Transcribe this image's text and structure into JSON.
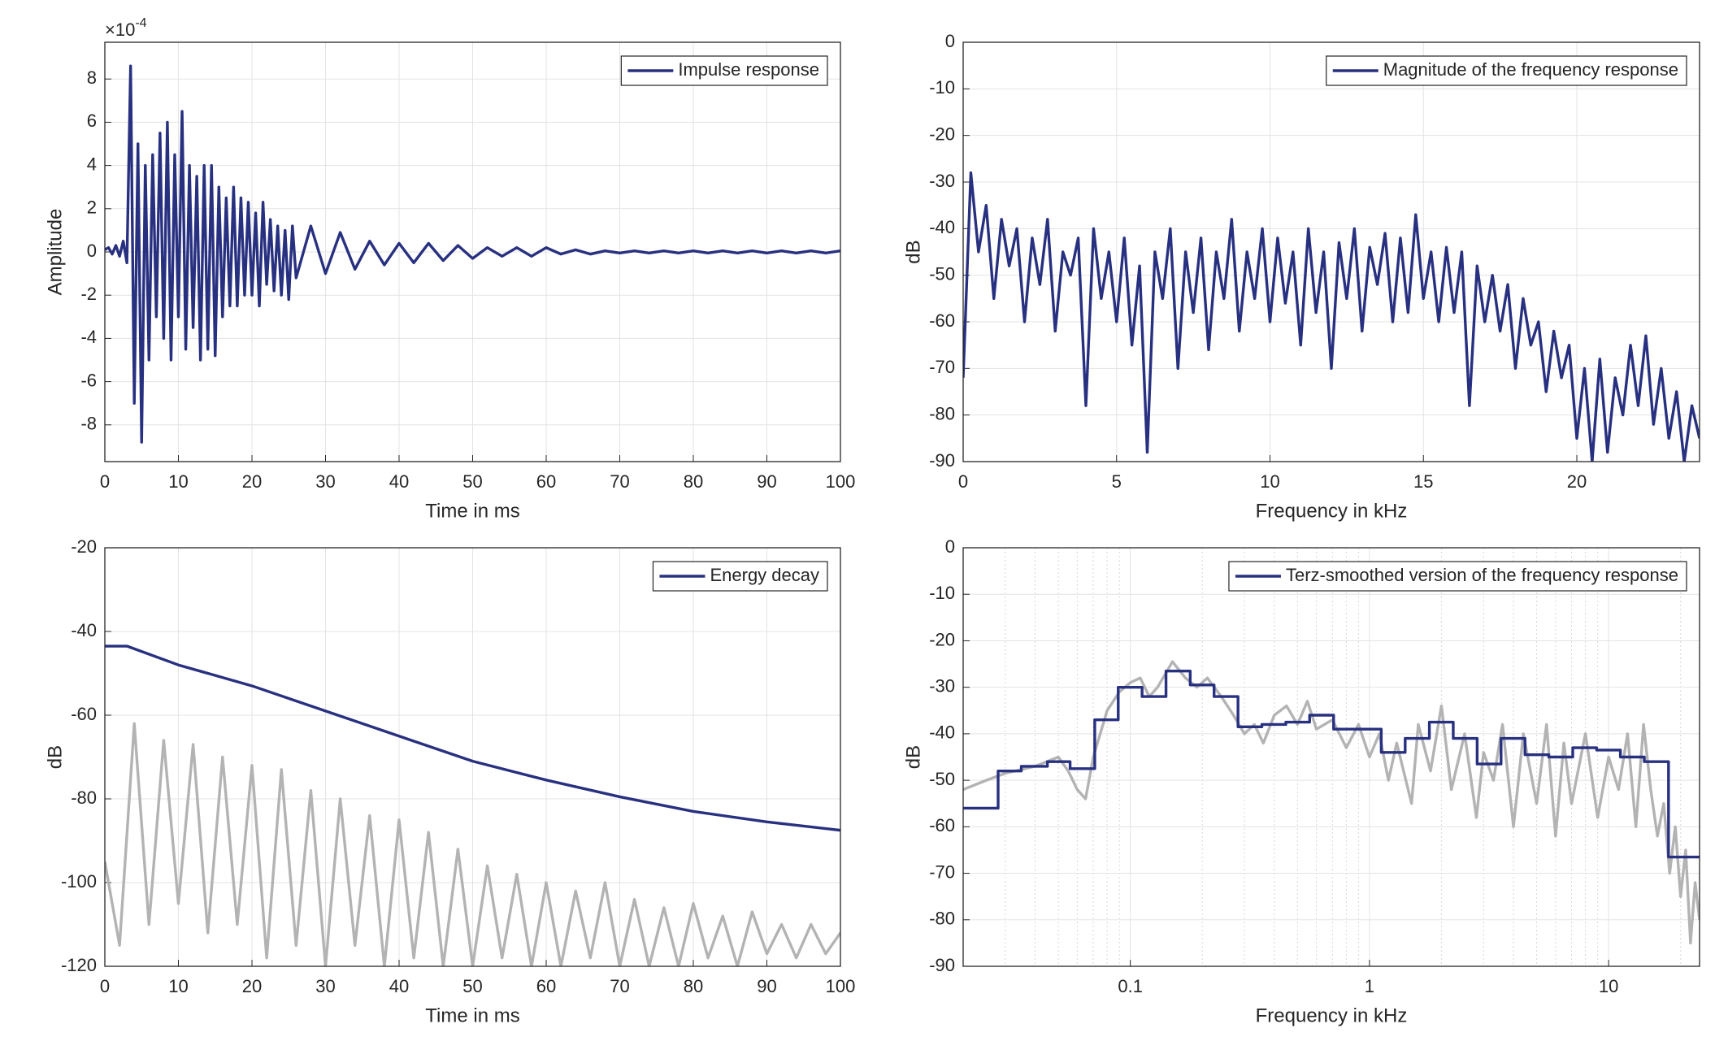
{
  "chart_data": [
    {
      "type": "line",
      "xlabel": "Time in ms",
      "ylabel": "Amplitude",
      "y_multiplier": "×10",
      "y_multiplier_exponent": "-4",
      "xlim": [
        0,
        100
      ],
      "xticks": [
        0,
        10,
        20,
        30,
        40,
        50,
        60,
        70,
        80,
        90,
        100
      ],
      "ylim": [
        -9.7,
        9.7
      ],
      "yticks": [
        -8,
        -6,
        -4,
        -2,
        0,
        2,
        4,
        6,
        8
      ],
      "grid": true,
      "legend": "upper right",
      "series": [
        {
          "name": "Impulse response",
          "color": "#283080",
          "x": [
            0,
            0.5,
            1,
            1.5,
            2,
            2.5,
            3,
            3.5,
            4,
            4.5,
            5,
            5.5,
            6,
            6.5,
            7,
            7.5,
            8,
            8.5,
            9,
            9.5,
            10,
            10.5,
            11,
            11.5,
            12,
            12.5,
            13,
            13.5,
            14,
            14.5,
            15,
            15.5,
            16,
            16.5,
            17,
            17.5,
            18,
            18.5,
            19,
            19.5,
            20,
            20.5,
            21,
            21.5,
            22,
            22.5,
            23,
            23.5,
            24,
            24.5,
            25,
            25.5,
            26,
            28,
            30,
            32,
            34,
            36,
            38,
            40,
            42,
            44,
            46,
            48,
            50,
            52,
            54,
            56,
            58,
            60,
            62,
            64,
            66,
            68,
            70,
            72,
            74,
            76,
            78,
            80,
            82,
            84,
            86,
            88,
            90,
            92,
            94,
            96,
            98,
            100
          ],
          "values": [
            0.1,
            0.2,
            -0.1,
            0.3,
            -0.2,
            0.5,
            -0.5,
            8.6,
            -7,
            5,
            -8.8,
            4,
            -5,
            4.5,
            -3,
            5.5,
            -4,
            6,
            -5,
            4.5,
            -3,
            6.5,
            -4.5,
            4,
            -3.5,
            3.5,
            -5,
            4,
            -4.5,
            4,
            -4.8,
            3,
            -3,
            2.5,
            -2.5,
            3,
            -2.5,
            2.5,
            -2,
            2.3,
            -2,
            1.8,
            -2.5,
            2.3,
            -1.5,
            1.5,
            -1.8,
            1.2,
            -2,
            1,
            -2.2,
            1.2,
            -1.2,
            1.2,
            -1,
            0.9,
            -0.8,
            0.5,
            -0.6,
            0.4,
            -0.5,
            0.4,
            -0.4,
            0.3,
            -0.3,
            0.2,
            -0.2,
            0.2,
            -0.2,
            0.2,
            -0.1,
            0.1,
            -0.1,
            0.05,
            -0.05,
            0.05,
            -0.05,
            0.05,
            -0.05,
            0.05,
            -0.05,
            0.05,
            -0.05,
            0.05,
            -0.05,
            0.05,
            -0.05,
            0.05,
            -0.05,
            0.05
          ]
        }
      ]
    },
    {
      "type": "line",
      "xlabel": "Frequency in kHz",
      "ylabel": "dB",
      "xlim": [
        0,
        24
      ],
      "xticks": [
        0,
        5,
        10,
        15,
        20
      ],
      "ylim": [
        -90,
        0
      ],
      "yticks": [
        -90,
        -80,
        -70,
        -60,
        -50,
        -40,
        -30,
        -20,
        -10,
        0
      ],
      "grid": true,
      "legend": "upper right",
      "series": [
        {
          "name": "Magnitude of the frequency response",
          "color": "#283080",
          "x": [
            0,
            0.25,
            0.5,
            0.75,
            1,
            1.25,
            1.5,
            1.75,
            2,
            2.25,
            2.5,
            2.75,
            3,
            3.25,
            3.5,
            3.75,
            4,
            4.25,
            4.5,
            4.75,
            5,
            5.25,
            5.5,
            5.75,
            6,
            6.25,
            6.5,
            6.75,
            7,
            7.25,
            7.5,
            7.75,
            8,
            8.25,
            8.5,
            8.75,
            9,
            9.25,
            9.5,
            9.75,
            10,
            10.25,
            10.5,
            10.75,
            11,
            11.25,
            11.5,
            11.75,
            12,
            12.25,
            12.5,
            12.75,
            13,
            13.25,
            13.5,
            13.75,
            14,
            14.25,
            14.5,
            14.75,
            15,
            15.25,
            15.5,
            15.75,
            16,
            16.25,
            16.5,
            16.75,
            17,
            17.25,
            17.5,
            17.75,
            18,
            18.25,
            18.5,
            18.75,
            19,
            19.25,
            19.5,
            19.75,
            20,
            20.25,
            20.5,
            20.75,
            21,
            21.25,
            21.5,
            21.75,
            22,
            22.25,
            22.5,
            22.75,
            23,
            23.25,
            23.5,
            23.75,
            24
          ],
          "values": [
            -72,
            -28,
            -45,
            -35,
            -55,
            -38,
            -48,
            -40,
            -60,
            -42,
            -52,
            -38,
            -62,
            -45,
            -50,
            -42,
            -78,
            -40,
            -55,
            -45,
            -60,
            -42,
            -65,
            -48,
            -88,
            -45,
            -55,
            -40,
            -70,
            -45,
            -58,
            -42,
            -66,
            -45,
            -55,
            -38,
            -62,
            -45,
            -55,
            -40,
            -60,
            -42,
            -56,
            -45,
            -65,
            -40,
            -58,
            -45,
            -70,
            -43,
            -55,
            -40,
            -62,
            -44,
            -52,
            -41,
            -60,
            -42,
            -58,
            -37,
            -55,
            -45,
            -60,
            -44,
            -58,
            -45,
            -78,
            -48,
            -60,
            -50,
            -62,
            -52,
            -70,
            -55,
            -65,
            -60,
            -75,
            -62,
            -72,
            -65,
            -85,
            -70,
            -90,
            -68,
            -88,
            -72,
            -80,
            -65,
            -78,
            -63,
            -82,
            -70,
            -85,
            -75,
            -90,
            -78,
            -85
          ]
        }
      ]
    },
    {
      "type": "line",
      "xlabel": "Time in ms",
      "ylabel": "dB",
      "xlim": [
        0,
        100
      ],
      "xticks": [
        0,
        10,
        20,
        30,
        40,
        50,
        60,
        70,
        80,
        90,
        100
      ],
      "ylim": [
        -120,
        -20
      ],
      "yticks": [
        -120,
        -100,
        -80,
        -60,
        -40,
        -20
      ],
      "grid": true,
      "legend": "upper right",
      "series": [
        {
          "color": "#b3b3b3",
          "x": [
            0,
            2,
            4,
            6,
            8,
            10,
            12,
            14,
            16,
            18,
            20,
            22,
            24,
            26,
            28,
            30,
            32,
            34,
            36,
            38,
            40,
            42,
            44,
            46,
            48,
            50,
            52,
            54,
            56,
            58,
            60,
            62,
            64,
            66,
            68,
            70,
            72,
            74,
            76,
            78,
            80,
            82,
            84,
            86,
            88,
            90,
            92,
            94,
            96,
            98,
            100
          ],
          "values": [
            -95,
            -115,
            -62,
            -110,
            -66,
            -105,
            -67,
            -112,
            -70,
            -110,
            -72,
            -118,
            -73,
            -115,
            -78,
            -120,
            -80,
            -115,
            -84,
            -120,
            -85,
            -118,
            -88,
            -120,
            -92,
            -120,
            -96,
            -118,
            -98,
            -120,
            -100,
            -120,
            -102,
            -118,
            -100,
            -120,
            -104,
            -120,
            -106,
            -120,
            -105,
            -118,
            -108,
            -120,
            -107,
            -117,
            -110,
            -118,
            -110,
            -117,
            -112
          ]
        },
        {
          "name": "Energy decay",
          "color": "#283080",
          "x": [
            0,
            3,
            10,
            20,
            30,
            40,
            50,
            60,
            70,
            80,
            90,
            100
          ],
          "values": [
            -43.5,
            -43.5,
            -48,
            -53,
            -59,
            -65,
            -71,
            -75.5,
            -79.5,
            -83,
            -85.5,
            -87.5
          ]
        }
      ]
    },
    {
      "type": "line",
      "xlabel": "Frequency in kHz",
      "ylabel": "dB",
      "xscale": "log",
      "minor_grid": true,
      "xlim": [
        0.02,
        24
      ],
      "xticks": [
        0.1,
        1,
        10
      ],
      "ylim": [
        -90,
        0
      ],
      "yticks": [
        -90,
        -80,
        -70,
        -60,
        -50,
        -40,
        -30,
        -20,
        -10,
        0
      ],
      "grid": true,
      "legend": "upper right",
      "series": [
        {
          "color": "#b3b3b3",
          "x": [
            0.02,
            0.025,
            0.03,
            0.04,
            0.05,
            0.055,
            0.06,
            0.065,
            0.07,
            0.08,
            0.09,
            0.1,
            0.11,
            0.12,
            0.13,
            0.15,
            0.17,
            0.19,
            0.21,
            0.24,
            0.27,
            0.3,
            0.33,
            0.36,
            0.4,
            0.45,
            0.5,
            0.55,
            0.6,
            0.7,
            0.8,
            0.9,
            1,
            1.1,
            1.2,
            1.3,
            1.5,
            1.6,
            1.8,
            2,
            2.2,
            2.5,
            2.8,
            3,
            3.3,
            3.6,
            4,
            4.4,
            5,
            5.5,
            6,
            6.5,
            7,
            8,
            9,
            10,
            11,
            12,
            13,
            14,
            15,
            16,
            17,
            18,
            19,
            20,
            21,
            22,
            23,
            24
          ],
          "values": [
            -52,
            -50,
            -48.5,
            -47,
            -45,
            -48,
            -52,
            -54,
            -45,
            -35,
            -31,
            -29,
            -28,
            -32,
            -30,
            -24.5,
            -28,
            -30,
            -28,
            -32,
            -36,
            -40,
            -38,
            -42,
            -36,
            -34,
            -38,
            -33,
            -39,
            -37,
            -43,
            -38,
            -45,
            -40,
            -50,
            -42,
            -55,
            -38,
            -48,
            -34,
            -52,
            -40,
            -58,
            -44,
            -50,
            -38,
            -60,
            -40,
            -55,
            -38,
            -62,
            -42,
            -55,
            -40,
            -58,
            -45,
            -52,
            -40,
            -60,
            -38,
            -52,
            -62,
            -55,
            -70,
            -60,
            -75,
            -65,
            -85,
            -72,
            -80
          ]
        },
        {
          "name": "Terz-smoothed version of the frequency response",
          "color": "#283080",
          "drawstyle": "steps",
          "x": [
            0.02,
            0.028,
            0.035,
            0.045,
            0.056,
            0.071,
            0.089,
            0.112,
            0.141,
            0.178,
            0.224,
            0.282,
            0.355,
            0.447,
            0.562,
            0.708,
            0.891,
            1.12,
            1.41,
            1.78,
            2.24,
            2.82,
            3.55,
            4.47,
            5.62,
            7.08,
            8.91,
            11.2,
            14.1,
            17.8,
            24
          ],
          "values": [
            -56,
            -48,
            -47,
            -46,
            -47.5,
            -37,
            -30,
            -32,
            -26.5,
            -29.5,
            -32,
            -38.5,
            -38,
            -37.5,
            -36,
            -39,
            -39,
            -44,
            -41,
            -37.5,
            -41,
            -46.5,
            -41,
            -44.5,
            -45,
            -43,
            -43.5,
            -45,
            -46,
            -66.5,
            -66.5
          ]
        }
      ]
    }
  ]
}
